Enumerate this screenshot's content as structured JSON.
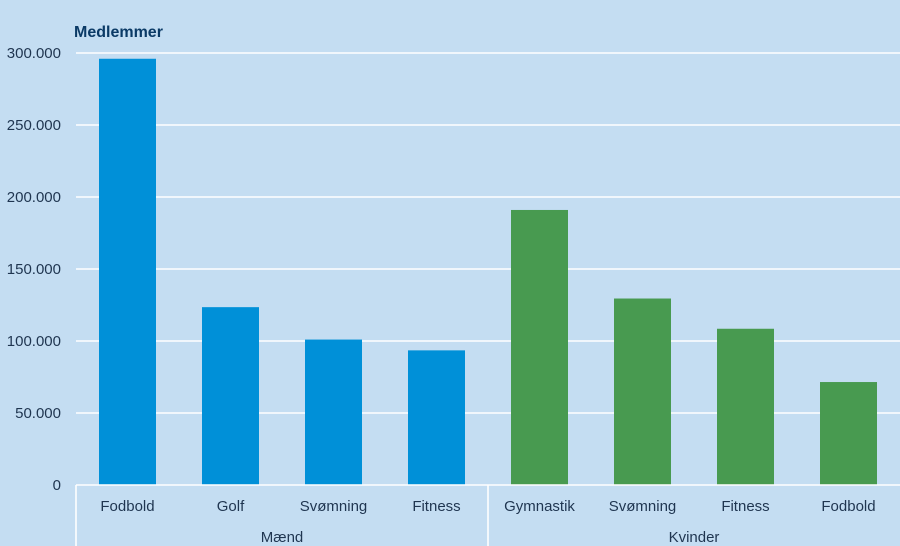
{
  "chart_data": {
    "type": "bar",
    "ylabel": "Medlemmer",
    "ylim": [
      0,
      300000
    ],
    "yticks": [
      0,
      50000,
      100000,
      150000,
      200000,
      250000,
      300000
    ],
    "ytick_labels": [
      "0",
      "50.000",
      "100.000",
      "150.000",
      "200.000",
      "250.000",
      "300.000"
    ],
    "grid": true,
    "groups": [
      {
        "name": "Mænd",
        "color": "#0090d8",
        "categories": [
          "Fodbold",
          "Golf",
          "Svømning",
          "Fitness"
        ],
        "values": [
          296000,
          123500,
          101000,
          93500
        ]
      },
      {
        "name": "Kvinder",
        "color": "#489a50",
        "categories": [
          "Gymnastik",
          "Svømning",
          "Fitness",
          "Fodbold"
        ],
        "values": [
          191000,
          129500,
          108500,
          71500
        ]
      }
    ]
  }
}
